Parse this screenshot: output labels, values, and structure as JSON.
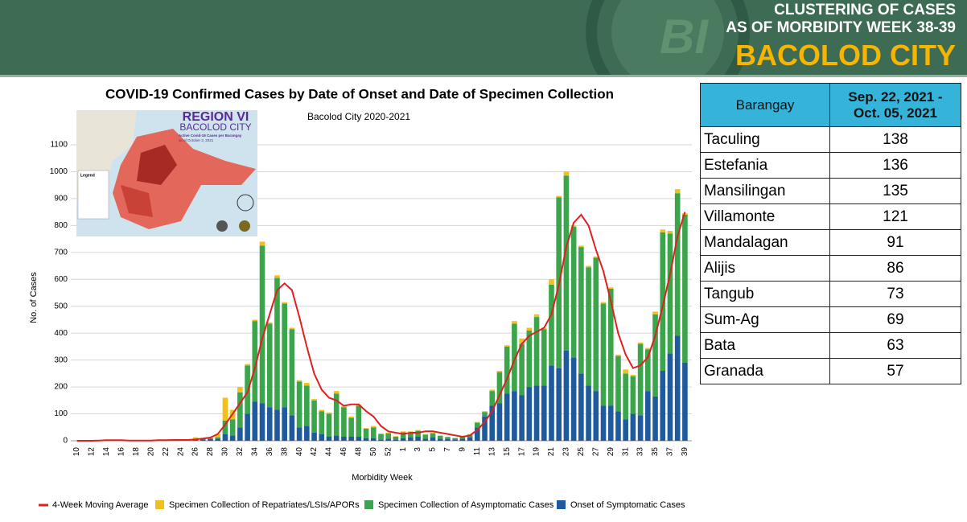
{
  "header": {
    "line1": "CLUSTERING OF CASES",
    "line2": "AS OF MORBIDITY WEEK 38-39",
    "city": "BACOLOD CITY"
  },
  "chart_data": {
    "type": "bar",
    "stacked": true,
    "title": "COVID-19 Confirmed Cases by Date of Onset and Date of Specimen Collection",
    "subtitle": "Bacolod City 2020-2021",
    "x_label": "Morbidity Week",
    "y_label": "No. of Cases",
    "categories": [
      "10",
      null,
      "12",
      null,
      "14",
      null,
      "16",
      null,
      "18",
      null,
      "20",
      null,
      "22",
      null,
      "24",
      null,
      "26",
      null,
      "28",
      null,
      "30",
      null,
      "32",
      null,
      "34",
      null,
      "36",
      null,
      "38",
      null,
      "40",
      null,
      "42",
      null,
      "44",
      null,
      "46",
      null,
      "48",
      null,
      "50",
      null,
      "52",
      null,
      "1",
      null,
      "3",
      null,
      "5",
      null,
      "7",
      null,
      "9",
      null,
      "11",
      null,
      "13",
      null,
      "15",
      null,
      "17",
      null,
      "19",
      null,
      "21",
      null,
      "23",
      null,
      "25",
      null,
      "27",
      null,
      "29",
      null,
      "31",
      null,
      "33",
      null,
      "35",
      null,
      "37",
      null,
      "39"
    ],
    "ylim": [
      0,
      1100
    ],
    "yticks": [
      0,
      100,
      200,
      300,
      400,
      500,
      600,
      700,
      800,
      900,
      1000,
      1100
    ],
    "grid": true,
    "series": [
      {
        "name": "Onset of Symptomatic Cases",
        "color": "#1f5a9e",
        "values": [
          0,
          0,
          1,
          2,
          3,
          2,
          1,
          1,
          1,
          1,
          2,
          2,
          3,
          3,
          3,
          4,
          5,
          5,
          6,
          8,
          25,
          20,
          50,
          100,
          145,
          140,
          125,
          115,
          125,
          95,
          50,
          55,
          30,
          25,
          15,
          20,
          15,
          15,
          15,
          10,
          10,
          5,
          8,
          5,
          10,
          12,
          15,
          8,
          12,
          8,
          6,
          5,
          8,
          12,
          50,
          90,
          130,
          140,
          175,
          185,
          170,
          200,
          205,
          205,
          280,
          270,
          335,
          310,
          250,
          205,
          185,
          130,
          130,
          110,
          80,
          100,
          95,
          185,
          165,
          260,
          325,
          390,
          290
        ]
      },
      {
        "name": "Specimen Collection of Asymptomatic Cases",
        "color": "#3aa54a",
        "values": [
          0,
          0,
          0,
          0,
          0,
          0,
          0,
          0,
          0,
          0,
          0,
          0,
          0,
          1,
          1,
          1,
          3,
          2,
          3,
          5,
          50,
          60,
          130,
          180,
          300,
          585,
          310,
          490,
          385,
          320,
          170,
          150,
          120,
          85,
          85,
          155,
          110,
          70,
          115,
          35,
          40,
          20,
          20,
          10,
          22,
          20,
          22,
          15,
          16,
          10,
          8,
          5,
          6,
          11,
          17,
          17,
          55,
          115,
          175,
          250,
          190,
          210,
          255,
          210,
          300,
          635,
          650,
          485,
          470,
          440,
          495,
          380,
          435,
          205,
          170,
          140,
          265,
          155,
          305,
          515,
          445,
          530,
          550
        ]
      },
      {
        "name": "Specimen Collection of Repatriates/LSIs/APORs",
        "color": "#f2c01c",
        "values": [
          0,
          0,
          0,
          0,
          0,
          0,
          0,
          0,
          0,
          0,
          0,
          0,
          0,
          0,
          0,
          0,
          5,
          2,
          3,
          12,
          85,
          35,
          20,
          5,
          5,
          15,
          5,
          10,
          5,
          5,
          5,
          10,
          5,
          5,
          5,
          10,
          5,
          5,
          5,
          2,
          5,
          2,
          2,
          2,
          3,
          3,
          3,
          2,
          2,
          2,
          1,
          0,
          1,
          2,
          3,
          3,
          5,
          5,
          5,
          10,
          20,
          10,
          10,
          5,
          20,
          5,
          15,
          5,
          5,
          5,
          5,
          5,
          5,
          5,
          15,
          5,
          5,
          5,
          10,
          10,
          10,
          15,
          5
        ]
      },
      {
        "name": "4-Week Moving Average",
        "color": "#e02020",
        "type": "line",
        "values": [
          0,
          0,
          0,
          1,
          2,
          2,
          2,
          1,
          1,
          1,
          1,
          2,
          2,
          3,
          3,
          3,
          5,
          8,
          12,
          25,
          60,
          100,
          140,
          180,
          270,
          380,
          470,
          560,
          585,
          560,
          460,
          350,
          250,
          190,
          160,
          150,
          130,
          135,
          135,
          110,
          90,
          55,
          35,
          30,
          25,
          30,
          30,
          35,
          35,
          30,
          25,
          20,
          15,
          20,
          40,
          70,
          110,
          170,
          230,
          300,
          360,
          390,
          405,
          420,
          470,
          580,
          720,
          810,
          840,
          800,
          710,
          630,
          520,
          400,
          320,
          270,
          280,
          310,
          390,
          500,
          620,
          760,
          850
        ]
      }
    ],
    "legend_order": [
      3,
      2,
      1,
      0
    ]
  },
  "map_inset": {
    "title": "REGION VI",
    "subtitle": "BACOLOD CITY",
    "caption": "Active Covid-19 Cases per Barangay",
    "date": "as of October 3, 2021",
    "legend": "Legend"
  },
  "table": {
    "columns": [
      "Barangay",
      "Sep. 22, 2021 - Oct. 05, 2021"
    ],
    "rows": [
      [
        "Taculing",
        138
      ],
      [
        "Estefania",
        136
      ],
      [
        "Mansilingan",
        135
      ],
      [
        "Villamonte",
        121
      ],
      [
        "Mandalagan",
        91
      ],
      [
        "Alijis",
        86
      ],
      [
        "Tangub",
        73
      ],
      [
        "Sum-Ag",
        69
      ],
      [
        "Bata",
        63
      ],
      [
        "Granada",
        57
      ]
    ]
  }
}
